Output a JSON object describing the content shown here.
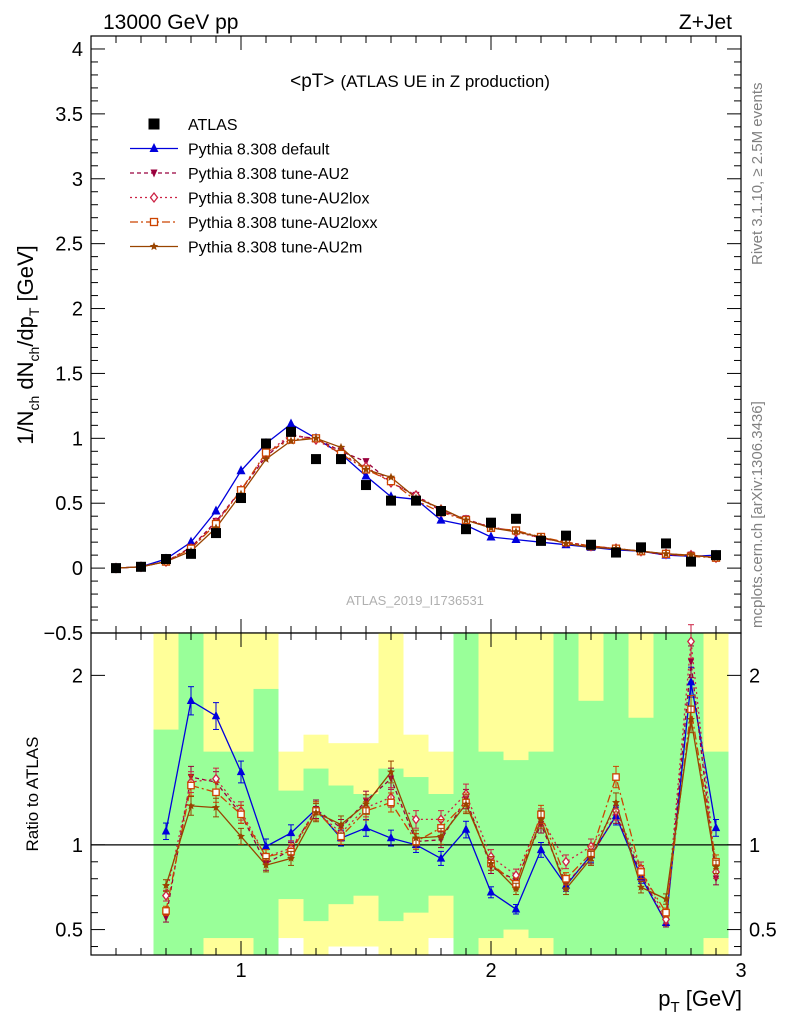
{
  "header": {
    "left": "13000 GeV pp",
    "right": "Z+Jet"
  },
  "side_texts": {
    "rivet": "Rivet 3.1.10, ≥ 2.5M events",
    "mcplots": "mcplots.cern.ch [arXiv:1306.3436]"
  },
  "chart_data": [
    {
      "type": "line",
      "title": "<pT> (ATLAS UE in Z production)",
      "title_main": "<pT>",
      "title_sub": "(ATLAS UE in Z production)",
      "ylabel": "1/N_ch dN_ch/dp_T [GeV]",
      "xlim": [
        0.4,
        3.0
      ],
      "ylim": [
        -0.5,
        4.1
      ],
      "yticks": [
        -0.5,
        0,
        0.5,
        1,
        1.5,
        2,
        2.5,
        3,
        3.5,
        4
      ],
      "ytick_labels": [
        "−0.5",
        "0",
        "0.5",
        "1",
        "1.5",
        "2",
        "2.5",
        "3",
        "3.5",
        "4"
      ],
      "watermark": "ATLAS_2019_I1736531",
      "legend_position": "top-left",
      "x": [
        0.5,
        0.6,
        0.7,
        0.8,
        0.9,
        1.0,
        1.1,
        1.2,
        1.3,
        1.4,
        1.5,
        1.6,
        1.7,
        1.8,
        1.9,
        2.0,
        2.1,
        2.2,
        2.3,
        2.4,
        2.5,
        2.6,
        2.7,
        2.8,
        2.9
      ],
      "series": [
        {
          "name": "ATLAS",
          "color": "#000000",
          "marker": "square",
          "values": [
            0.0,
            0.01,
            0.07,
            0.11,
            0.27,
            0.54,
            0.96,
            1.05,
            0.84,
            0.84,
            0.64,
            0.52,
            0.52,
            0.44,
            0.3,
            0.35,
            0.38,
            0.21,
            0.25,
            0.18,
            0.12,
            0.16,
            0.19,
            0.05,
            0.1
          ]
        },
        {
          "name": "Pythia 8.308 default",
          "color": "#0000dd",
          "marker": "triangle-up",
          "dash": "",
          "values": [
            0.0,
            0.01,
            0.07,
            0.2,
            0.44,
            0.75,
            0.96,
            1.11,
            1.0,
            0.88,
            0.71,
            0.55,
            0.53,
            0.37,
            0.33,
            0.24,
            0.22,
            0.2,
            0.18,
            0.16,
            0.14,
            0.13,
            0.1,
            0.09,
            0.1
          ]
        },
        {
          "name": "Pythia 8.308 tune-AU2",
          "color": "#99003d",
          "marker": "triangle-down",
          "dash": "4,3",
          "values": [
            0.0,
            0.01,
            0.05,
            0.16,
            0.36,
            0.6,
            0.86,
            1.02,
            1.0,
            0.9,
            0.82,
            0.66,
            0.56,
            0.44,
            0.38,
            0.31,
            0.29,
            0.23,
            0.2,
            0.17,
            0.15,
            0.13,
            0.1,
            0.1,
            0.08
          ]
        },
        {
          "name": "Pythia 8.308 tune-AU2lox",
          "color": "#cc2244",
          "marker": "diamond-open",
          "dash": "2,3",
          "values": [
            0.0,
            0.01,
            0.05,
            0.15,
            0.35,
            0.6,
            0.88,
            1.03,
            0.99,
            0.88,
            0.78,
            0.66,
            0.56,
            0.45,
            0.37,
            0.32,
            0.28,
            0.23,
            0.2,
            0.17,
            0.15,
            0.13,
            0.11,
            0.1,
            0.08
          ]
        },
        {
          "name": "Pythia 8.308 tune-AU2loxx",
          "color": "#cc4400",
          "marker": "square-open",
          "dash": "8,3,2,3",
          "values": [
            0.0,
            0.01,
            0.05,
            0.15,
            0.34,
            0.6,
            0.89,
            0.99,
            1.0,
            0.88,
            0.76,
            0.67,
            0.52,
            0.43,
            0.37,
            0.31,
            0.29,
            0.24,
            0.2,
            0.17,
            0.15,
            0.13,
            0.11,
            0.09,
            0.08
          ]
        },
        {
          "name": "Pythia 8.308 tune-AU2m",
          "color": "#994400",
          "marker": "star",
          "dash": "",
          "values": [
            0.0,
            0.01,
            0.05,
            0.13,
            0.31,
            0.57,
            0.84,
            0.98,
            1.0,
            0.93,
            0.76,
            0.7,
            0.54,
            0.46,
            0.37,
            0.31,
            0.28,
            0.24,
            0.19,
            0.16,
            0.15,
            0.13,
            0.11,
            0.1,
            0.08
          ]
        }
      ]
    },
    {
      "type": "line",
      "ylabel": "Ratio to ATLAS",
      "xlabel": "p_T [GeV]",
      "xlim": [
        0.4,
        3.0
      ],
      "ylim": [
        0.35,
        2.25
      ],
      "yticks": [
        0.5,
        1,
        2
      ],
      "ytick_labels": [
        "0.5",
        "1",
        "2"
      ],
      "xticks": [
        1,
        2,
        3
      ],
      "xtick_labels": [
        "1",
        "2",
        "3"
      ],
      "reference_line": 1,
      "x": [
        0.7,
        0.8,
        0.9,
        1.0,
        1.1,
        1.2,
        1.3,
        1.4,
        1.5,
        1.6,
        1.7,
        1.8,
        1.9,
        2.0,
        2.1,
        2.2,
        2.3,
        2.4,
        2.5,
        2.6,
        2.7,
        2.8,
        2.9
      ],
      "bands": {
        "inner_color": "#99ff99",
        "outer_color": "#ffff99",
        "inner": [
          [
            0.32,
            1.68
          ],
          [
            0.05,
            2.25
          ],
          [
            0.45,
            1.55
          ],
          [
            0.45,
            1.55
          ],
          [
            0.08,
            1.92
          ],
          [
            0.68,
            1.32
          ],
          [
            0.55,
            1.45
          ],
          [
            0.65,
            1.35
          ],
          [
            0.7,
            1.3
          ],
          [
            0.55,
            1.45
          ],
          [
            0.6,
            1.4
          ],
          [
            0.7,
            1.3
          ],
          [
            0.05,
            2.25
          ],
          [
            0.45,
            1.55
          ],
          [
            0.5,
            1.5
          ],
          [
            0.45,
            1.55
          ],
          [
            0.05,
            2.25
          ],
          [
            0.15,
            1.85
          ],
          [
            0.05,
            2.25
          ],
          [
            0.25,
            1.75
          ],
          [
            0.05,
            2.25
          ],
          [
            0.05,
            2.25
          ],
          [
            0.45,
            1.55
          ]
        ],
        "outer": [
          [
            0.05,
            2.25
          ],
          [
            0.05,
            2.25
          ],
          [
            0.05,
            2.25
          ],
          [
            0.05,
            2.25
          ],
          [
            0.05,
            2.25
          ],
          [
            0.45,
            1.55
          ],
          [
            0.35,
            1.65
          ],
          [
            0.4,
            1.6
          ],
          [
            0.4,
            1.6
          ],
          [
            0.05,
            2.25
          ],
          [
            0.35,
            1.65
          ],
          [
            0.45,
            1.55
          ],
          [
            0.05,
            2.25
          ],
          [
            0.05,
            2.25
          ],
          [
            0.05,
            2.25
          ],
          [
            0.05,
            2.25
          ],
          [
            0.05,
            2.25
          ],
          [
            0.05,
            2.25
          ],
          [
            0.05,
            2.25
          ],
          [
            0.05,
            2.25
          ],
          [
            0.05,
            2.25
          ],
          [
            0.05,
            2.25
          ],
          [
            0.05,
            2.25
          ]
        ]
      },
      "series": [
        {
          "name": "Pythia 8.308 default",
          "color": "#0000dd",
          "marker": "triangle-up",
          "dash": "",
          "values": [
            1.08,
            1.85,
            1.76,
            1.43,
            0.99,
            1.07,
            1.21,
            1.04,
            1.1,
            1.04,
            1.0,
            0.92,
            1.09,
            0.72,
            0.62,
            0.97,
            0.76,
            0.94,
            1.17,
            0.81,
            0.54,
            1.96,
            1.1
          ]
        },
        {
          "name": "Pythia 8.308 tune-AU2",
          "color": "#99003d",
          "marker": "triangle-down",
          "dash": "4,3",
          "values": [
            0.57,
            1.4,
            1.37,
            1.18,
            0.89,
            0.97,
            1.21,
            1.1,
            1.26,
            1.39,
            1.02,
            1.03,
            1.27,
            0.87,
            0.79,
            1.12,
            0.77,
            0.93,
            1.18,
            0.83,
            0.54,
            2.08,
            0.8
          ]
        },
        {
          "name": "Pythia 8.308 tune-AU2lox",
          "color": "#cc2244",
          "marker": "diamond-open",
          "dash": "2,3",
          "values": [
            0.7,
            1.37,
            1.39,
            1.2,
            0.93,
            0.98,
            1.2,
            1.07,
            1.22,
            1.28,
            1.15,
            1.15,
            1.3,
            0.93,
            0.82,
            1.16,
            0.9,
            0.99,
            1.2,
            0.86,
            0.56,
            2.2,
            0.84
          ]
        },
        {
          "name": "Pythia 8.308 tune-AU2loxx",
          "color": "#cc4400",
          "marker": "square-open",
          "dash": "8,3,2,3",
          "values": [
            0.61,
            1.35,
            1.31,
            1.18,
            0.93,
            0.96,
            1.2,
            1.05,
            1.2,
            1.25,
            1.02,
            1.1,
            1.25,
            0.89,
            0.77,
            1.18,
            0.8,
            0.95,
            1.4,
            0.84,
            0.6,
            1.8,
            0.9
          ]
        },
        {
          "name": "Pythia 8.308 tune-AU2m",
          "color": "#994400",
          "marker": "star",
          "dash": "",
          "values": [
            0.76,
            1.23,
            1.22,
            1.05,
            0.88,
            0.92,
            1.19,
            1.12,
            1.24,
            1.43,
            1.04,
            1.05,
            1.24,
            0.89,
            0.74,
            1.15,
            0.74,
            0.92,
            1.25,
            0.75,
            0.68,
            1.74,
            0.87
          ]
        }
      ]
    }
  ]
}
